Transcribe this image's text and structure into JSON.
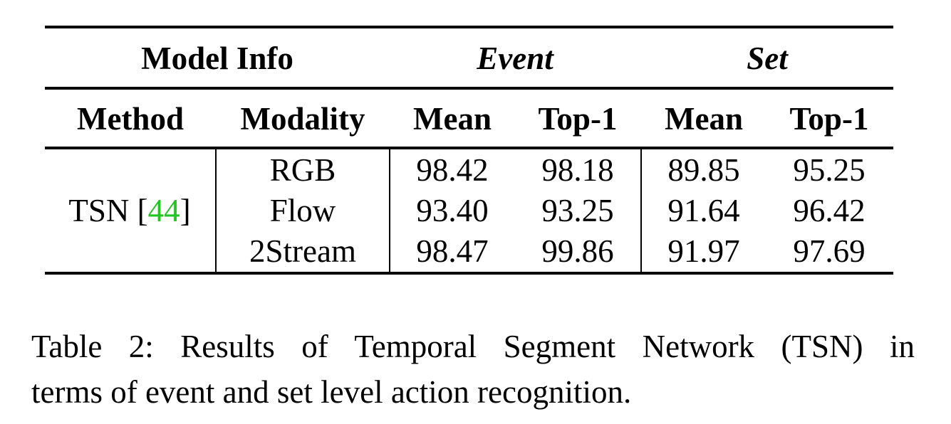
{
  "table": {
    "group_headers": [
      "Model Info",
      "Event",
      "Set"
    ],
    "column_headers": [
      "Method",
      "Modality",
      "Mean",
      "Top-1",
      "Mean",
      "Top-1"
    ],
    "method": {
      "name": "TSN [",
      "ref": "44",
      "close": "]"
    },
    "rows": [
      {
        "modality": "RGB",
        "event_mean": "98.42",
        "event_top1": "98.18",
        "set_mean": "89.85",
        "set_top1": "95.25"
      },
      {
        "modality": "Flow",
        "event_mean": "93.40",
        "event_top1": "93.25",
        "set_mean": "91.64",
        "set_top1": "96.42"
      },
      {
        "modality": "2Stream",
        "event_mean": "98.47",
        "event_top1": "99.86",
        "set_mean": "91.97",
        "set_top1": "97.69"
      }
    ]
  },
  "caption": {
    "line1": "Table 2: Results of Temporal Segment Network (TSN) in",
    "line2": "terms of event and set level action recognition."
  },
  "colors": {
    "reference_link": "#22c522"
  }
}
